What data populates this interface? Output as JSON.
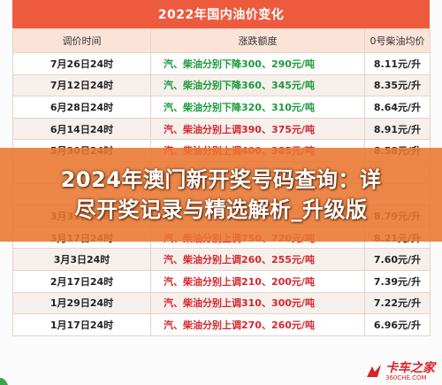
{
  "title": "2022年国内油价变化",
  "headers": [
    "调价时间",
    "涨跌额度",
    "0号柴油均价"
  ],
  "rows": [
    {
      "date": "7月26日24时",
      "change": "汽、柴油分别下降300、290元/吨",
      "direction": "down",
      "price": "8.11元/升"
    },
    {
      "date": "7月12日24时",
      "change": "汽、柴油分别下降360、345元/吨",
      "direction": "down",
      "price": "8.35元/升"
    },
    {
      "date": "6月28日24时",
      "change": "汽、柴油分别下降320、310元/吨",
      "direction": "down",
      "price": "8.64元/升"
    },
    {
      "date": "6月14日24时",
      "change": "汽、柴油分别上调390、375元/吨",
      "direction": "up",
      "price": "8.91元/升"
    },
    {
      "date": "5月30日24时",
      "change": "汽、柴油分别上调400、385元/吨",
      "direction": "up",
      "price": "8.58元/升"
    },
    {
      "date": "",
      "change": "",
      "direction": "up",
      "price": ""
    },
    {
      "date": "",
      "change": "",
      "direction": "up",
      "price": ""
    },
    {
      "date": "3月31日24时",
      "change": "",
      "direction": "up",
      "price": "8.79元/升"
    },
    {
      "date": "3月17日24时",
      "change": "汽、柴油分别上调750、720元/吨",
      "direction": "up",
      "price": "8.21元/升"
    },
    {
      "date": "3月3日24时",
      "change": "汽、柴油分别上调260、255元/吨",
      "direction": "up",
      "price": "7.60元/升"
    },
    {
      "date": "2月17日24时",
      "change": "汽、柴油分别上调210、200元/吨",
      "direction": "up",
      "price": "7.39元/升"
    },
    {
      "date": "1月29日24时",
      "change": "汽、柴油分别上调310、300元/吨",
      "direction": "up",
      "price": "7.22元/升"
    },
    {
      "date": "1月17日24时",
      "change": "汽、柴油分别上调270、260元/吨",
      "direction": "up",
      "price": "6.96元/升"
    }
  ],
  "overlay": {
    "line1": "2024年澳门新开奖号码查询：详",
    "line2": "尽开奖记录与精选解析_升级版"
  },
  "logo": {
    "main": "卡车之家",
    "sub": "360CHE.COM"
  },
  "colors": {
    "title_bg": "#ee5a3e",
    "down": "#1a9a3c",
    "up": "#d8252d",
    "overlay": "#e97630"
  }
}
